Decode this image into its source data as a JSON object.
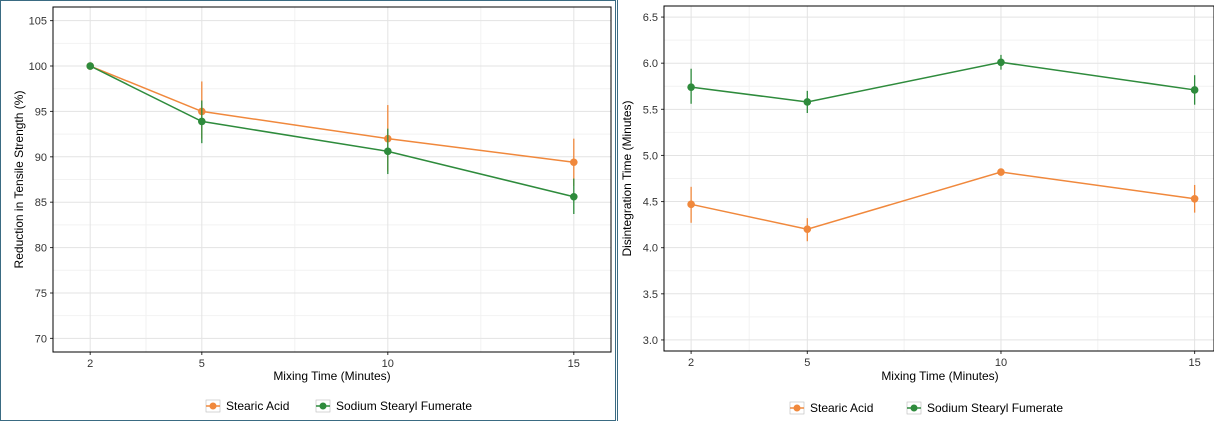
{
  "colors": {
    "stearic": "#F0883C",
    "ssf": "#2E8B3C",
    "grid": "#e3e3e3",
    "frame": "#000000"
  },
  "chart_data": [
    {
      "type": "line",
      "xlabel": "Mixing Time (Minutes)",
      "ylabel": "Reduction in Tensile Strength (%)",
      "x": [
        2,
        5,
        10,
        15
      ],
      "xlim": [
        1,
        16
      ],
      "ylim": [
        68.5,
        106.5
      ],
      "yticks": [
        70,
        75,
        80,
        85,
        90,
        95,
        100,
        105
      ],
      "xticks": [
        2,
        5,
        10,
        15
      ],
      "grid": true,
      "legend_position": "bottom",
      "series": [
        {
          "name": "Stearic Acid",
          "color": "#F0883C",
          "values": [
            100,
            95.0,
            92.0,
            89.4
          ],
          "err_low": [
            100,
            92.0,
            88.4,
            86.8
          ],
          "err_high": [
            100,
            98.3,
            95.7,
            92.0
          ]
        },
        {
          "name": "Sodium Stearyl Fumerate",
          "color": "#2E8B3C",
          "values": [
            100,
            93.9,
            90.6,
            85.6
          ],
          "err_low": [
            100,
            91.5,
            88.1,
            83.7
          ],
          "err_high": [
            100,
            96.2,
            93.1,
            87.6
          ]
        }
      ]
    },
    {
      "type": "line",
      "xlabel": "Mixing Time (Minutes)",
      "ylabel": "Disintegration Time (Minutes)",
      "x": [
        2,
        5,
        10,
        15
      ],
      "xlim": [
        1.3,
        15.5
      ],
      "ylim": [
        2.88,
        6.62
      ],
      "yticks": [
        3.0,
        3.5,
        4.0,
        4.5,
        5.0,
        5.5,
        6.0,
        6.5
      ],
      "xticks": [
        2,
        5,
        10,
        15
      ],
      "grid": true,
      "legend_position": "bottom",
      "series": [
        {
          "name": "Stearic Acid",
          "color": "#F0883C",
          "values": [
            4.47,
            4.2,
            4.82,
            4.53
          ],
          "err_low": [
            4.27,
            4.07,
            4.78,
            4.38
          ],
          "err_high": [
            4.66,
            4.32,
            4.85,
            4.68
          ]
        },
        {
          "name": "Sodium Stearyl Fumerate",
          "color": "#2E8B3C",
          "values": [
            5.74,
            5.58,
            6.01,
            5.71
          ],
          "err_low": [
            5.56,
            5.46,
            5.93,
            5.55
          ],
          "err_high": [
            5.94,
            5.7,
            6.09,
            5.87
          ]
        }
      ]
    }
  ]
}
